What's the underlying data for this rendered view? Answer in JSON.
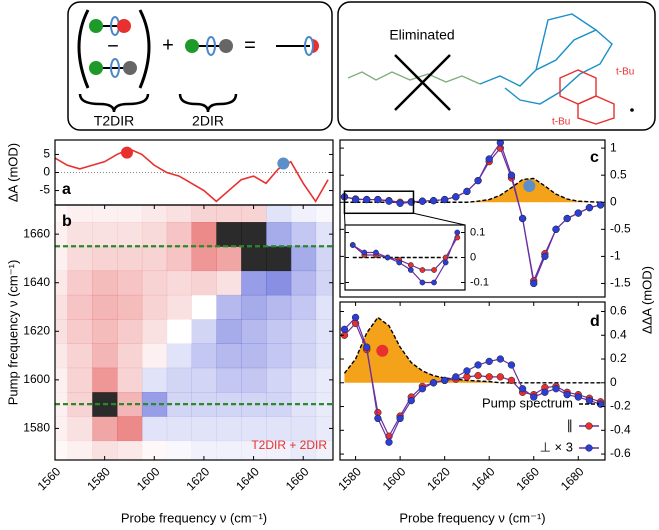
{
  "diagram": {
    "left": {
      "operators": [
        "−",
        "+",
        "="
      ],
      "labels": [
        "T2DIR",
        "2DIR"
      ]
    },
    "right": {
      "title": "Eliminated",
      "substituents": [
        "t-Bu",
        "t-Bu"
      ]
    }
  },
  "chart_data": [
    {
      "type": "line",
      "panel": "a",
      "ylabel": "ΔA (mOD)",
      "xlim": [
        1560,
        1672
      ],
      "ylim": [
        -9,
        9
      ],
      "yticks": [
        5,
        0,
        -5
      ],
      "zero_line": true,
      "x": [
        1560,
        1565,
        1570,
        1575,
        1580,
        1585,
        1590,
        1595,
        1600,
        1605,
        1610,
        1615,
        1620,
        1625,
        1630,
        1635,
        1640,
        1645,
        1650,
        1655,
        1660,
        1665,
        1670
      ],
      "series": [
        {
          "color": "#e8312f",
          "style": "line",
          "values": [
            4,
            2,
            1,
            2,
            3,
            5,
            6.5,
            5,
            2,
            0,
            -1,
            -3,
            -5,
            -8,
            -5,
            -2,
            -1,
            -3,
            1,
            3,
            -3,
            -8,
            -2
          ]
        }
      ],
      "markers": [
        {
          "x": 1589,
          "y": 5.5,
          "color": "#e8312f"
        },
        {
          "x": 1652,
          "y": 2.5,
          "color": "#5b8fc9"
        }
      ]
    },
    {
      "type": "heatmap",
      "panel": "b",
      "ylabel": "Pump frequency ν (cm⁻¹)",
      "xlabel": "Probe frequency ν (cm⁻¹)",
      "xlim": [
        1560,
        1672
      ],
      "ylim": [
        1567,
        1672
      ],
      "xticks": [
        1560,
        1580,
        1600,
        1620,
        1640,
        1660
      ],
      "yticks": [
        1580,
        1600,
        1620,
        1640,
        1660
      ],
      "x": [
        1560,
        1570,
        1580,
        1590,
        1600,
        1610,
        1620,
        1630,
        1640,
        1650,
        1660,
        1670
      ],
      "y": [
        1570,
        1580,
        1590,
        1600,
        1610,
        1620,
        1630,
        1640,
        1650,
        1660,
        1670
      ],
      "z": [
        [
          0.05,
          0.1,
          0.2,
          0.15,
          0.05,
          -0.05,
          -0.1,
          -0.1,
          -0.1,
          -0.1,
          -0.15,
          -0.1
        ],
        [
          0.1,
          0.2,
          0.6,
          0.8,
          -0.2,
          -0.2,
          -0.2,
          -0.2,
          -0.2,
          -0.2,
          -0.2,
          -0.15
        ],
        [
          0.1,
          0.3,
          0.9,
          0.5,
          -0.7,
          -0.3,
          -0.3,
          -0.3,
          -0.3,
          -0.3,
          -0.2,
          -0.15
        ],
        [
          0.1,
          0.3,
          0.7,
          0.3,
          -0.2,
          -0.3,
          -0.3,
          -0.4,
          -0.4,
          -0.3,
          -0.2,
          -0.15
        ],
        [
          0.15,
          0.3,
          0.5,
          0.3,
          0.1,
          -0.2,
          -0.4,
          -0.5,
          -0.5,
          -0.4,
          -0.3,
          -0.2
        ],
        [
          0.2,
          0.35,
          0.45,
          0.35,
          0.2,
          0.0,
          -0.3,
          -0.6,
          -0.5,
          -0.4,
          -0.3,
          -0.2
        ],
        [
          0.2,
          0.4,
          0.5,
          0.45,
          0.3,
          0.2,
          0.0,
          -0.5,
          -0.6,
          -0.5,
          -0.4,
          -0.2
        ],
        [
          0.15,
          0.35,
          0.45,
          0.4,
          0.3,
          0.25,
          0.3,
          0.2,
          -0.7,
          -0.8,
          -0.5,
          -0.3
        ],
        [
          0.1,
          0.25,
          0.3,
          0.3,
          0.3,
          0.4,
          0.7,
          0.6,
          0.95,
          -0.95,
          -0.6,
          -0.3
        ],
        [
          0.1,
          0.2,
          0.2,
          0.2,
          0.25,
          0.4,
          0.8,
          0.9,
          0.95,
          -0.6,
          -0.4,
          -0.2
        ],
        [
          0.05,
          0.1,
          0.1,
          0.1,
          0.15,
          0.2,
          0.3,
          0.3,
          0.3,
          -0.2,
          -0.1,
          -0.05
        ]
      ],
      "hlines": [
        1655,
        1590
      ],
      "hline_color": "#2a8a2a",
      "annotation": "T2DIR + 2DIR",
      "annotation_color": "#e8312f"
    },
    {
      "type": "line",
      "panel": "c",
      "ylabel": "ΔΔA (mOD)",
      "xlim": [
        1573,
        1692
      ],
      "ylim": [
        -1.75,
        1.15
      ],
      "yticks": [
        1,
        0.5,
        0,
        -0.5,
        -1,
        -1.5
      ],
      "x": [
        1575,
        1580,
        1585,
        1590,
        1595,
        1600,
        1605,
        1610,
        1615,
        1620,
        1625,
        1630,
        1635,
        1640,
        1645,
        1650,
        1655,
        1660,
        1665,
        1670,
        1675,
        1680,
        1685,
        1690
      ],
      "series": [
        {
          "color": "#000000",
          "fill": "#f5a21b",
          "style": "area",
          "values": [
            0,
            0,
            0,
            0,
            0,
            0,
            0,
            0,
            0,
            0,
            0,
            0,
            0.02,
            0.05,
            0.13,
            0.27,
            0.42,
            0.44,
            0.3,
            0.15,
            0.06,
            0.02,
            0.01,
            0
          ]
        },
        {
          "color": "#e8312f",
          "style": "dots",
          "values": [
            0.1,
            0.06,
            0.05,
            0.05,
            0.03,
            0.0,
            0.01,
            0.02,
            0.03,
            0.05,
            0.1,
            0.2,
            0.4,
            0.75,
            1.0,
            0.45,
            -0.3,
            -1.45,
            -0.95,
            -0.5,
            -0.3,
            -0.2,
            -0.1,
            -0.05
          ]
        },
        {
          "color": "#2b3fd6",
          "style": "dots",
          "values": [
            0.1,
            0.05,
            0.05,
            0.05,
            0.02,
            -0.02,
            0.0,
            0.02,
            0.03,
            0.05,
            0.1,
            0.2,
            0.4,
            0.8,
            1.1,
            0.5,
            -0.3,
            -1.5,
            -1.0,
            -0.5,
            -0.3,
            -0.2,
            -0.1,
            -0.05
          ]
        }
      ],
      "markers": [
        {
          "x": 1658,
          "y": 0.3,
          "color": "#5b8fc9"
        }
      ],
      "inset": {
        "xlim": [
          1575,
          1606
        ],
        "ylim": [
          -0.13,
          0.13
        ],
        "yticks": [
          0.1,
          0,
          -0.1
        ],
        "x": [
          1577,
          1580,
          1583,
          1586,
          1589,
          1592,
          1595,
          1598,
          1601,
          1604
        ],
        "series": [
          {
            "color": "#000000",
            "style": "dash",
            "values": [
              0,
              0,
              0,
              0,
              0,
              0,
              0,
              0,
              0,
              0
            ]
          },
          {
            "color": "#e8312f",
            "style": "dots",
            "values": [
              0.05,
              0.01,
              0.01,
              0.0,
              -0.01,
              -0.03,
              -0.05,
              -0.05,
              0.0,
              0.08
            ]
          },
          {
            "color": "#2b3fd6",
            "style": "dots",
            "values": [
              0.05,
              0.02,
              0.02,
              0.0,
              -0.02,
              -0.05,
              -0.1,
              -0.1,
              -0.02,
              0.1
            ]
          }
        ]
      }
    },
    {
      "type": "line",
      "panel": "d",
      "xlabel": "Probe frequency ν (cm⁻¹)",
      "xlim": [
        1573,
        1692
      ],
      "ylim": [
        -0.65,
        0.68
      ],
      "xticks": [
        1580,
        1600,
        1620,
        1640,
        1660,
        1680
      ],
      "yticks": [
        0.6,
        0.4,
        0.2,
        0,
        -0.2,
        -0.4,
        -0.6
      ],
      "x": [
        1575,
        1580,
        1585,
        1590,
        1595,
        1600,
        1605,
        1610,
        1615,
        1620,
        1625,
        1630,
        1635,
        1640,
        1645,
        1650,
        1655,
        1660,
        1665,
        1670,
        1675,
        1680,
        1685,
        1690
      ],
      "series": [
        {
          "name": "Pump spectrum",
          "color": "#000000",
          "fill": "#f5a21b",
          "style": "area",
          "values": [
            0.08,
            0.2,
            0.42,
            0.55,
            0.48,
            0.3,
            0.17,
            0.1,
            0.06,
            0.04,
            0.03,
            0.02,
            0.015,
            0.01,
            0,
            0,
            0,
            0,
            0,
            0,
            0,
            0,
            0,
            0
          ]
        },
        {
          "name": "∥",
          "color": "#e8312f",
          "style": "dots",
          "values": [
            0.4,
            0.5,
            0.28,
            -0.25,
            -0.45,
            -0.28,
            -0.12,
            -0.03,
            0.0,
            0.02,
            0.03,
            0.05,
            0.06,
            0.05,
            0.05,
            0.02,
            -0.08,
            -0.1,
            -0.04,
            -0.03,
            -0.08,
            -0.1,
            -0.13,
            -0.16
          ]
        },
        {
          "name": "⊥ × 3",
          "color": "#2b3fd6",
          "style": "dots",
          "values": [
            0.45,
            0.55,
            0.3,
            -0.3,
            -0.5,
            -0.3,
            -0.15,
            -0.05,
            0.0,
            0.02,
            0.05,
            0.1,
            0.15,
            0.18,
            0.2,
            0.15,
            -0.05,
            -0.12,
            -0.08,
            -0.05,
            -0.1,
            -0.12,
            -0.15,
            -0.18
          ]
        }
      ],
      "markers": [
        {
          "x": 1592,
          "y": 0.27,
          "color": "#e8312f"
        }
      ],
      "legend": "lower right"
    }
  ]
}
